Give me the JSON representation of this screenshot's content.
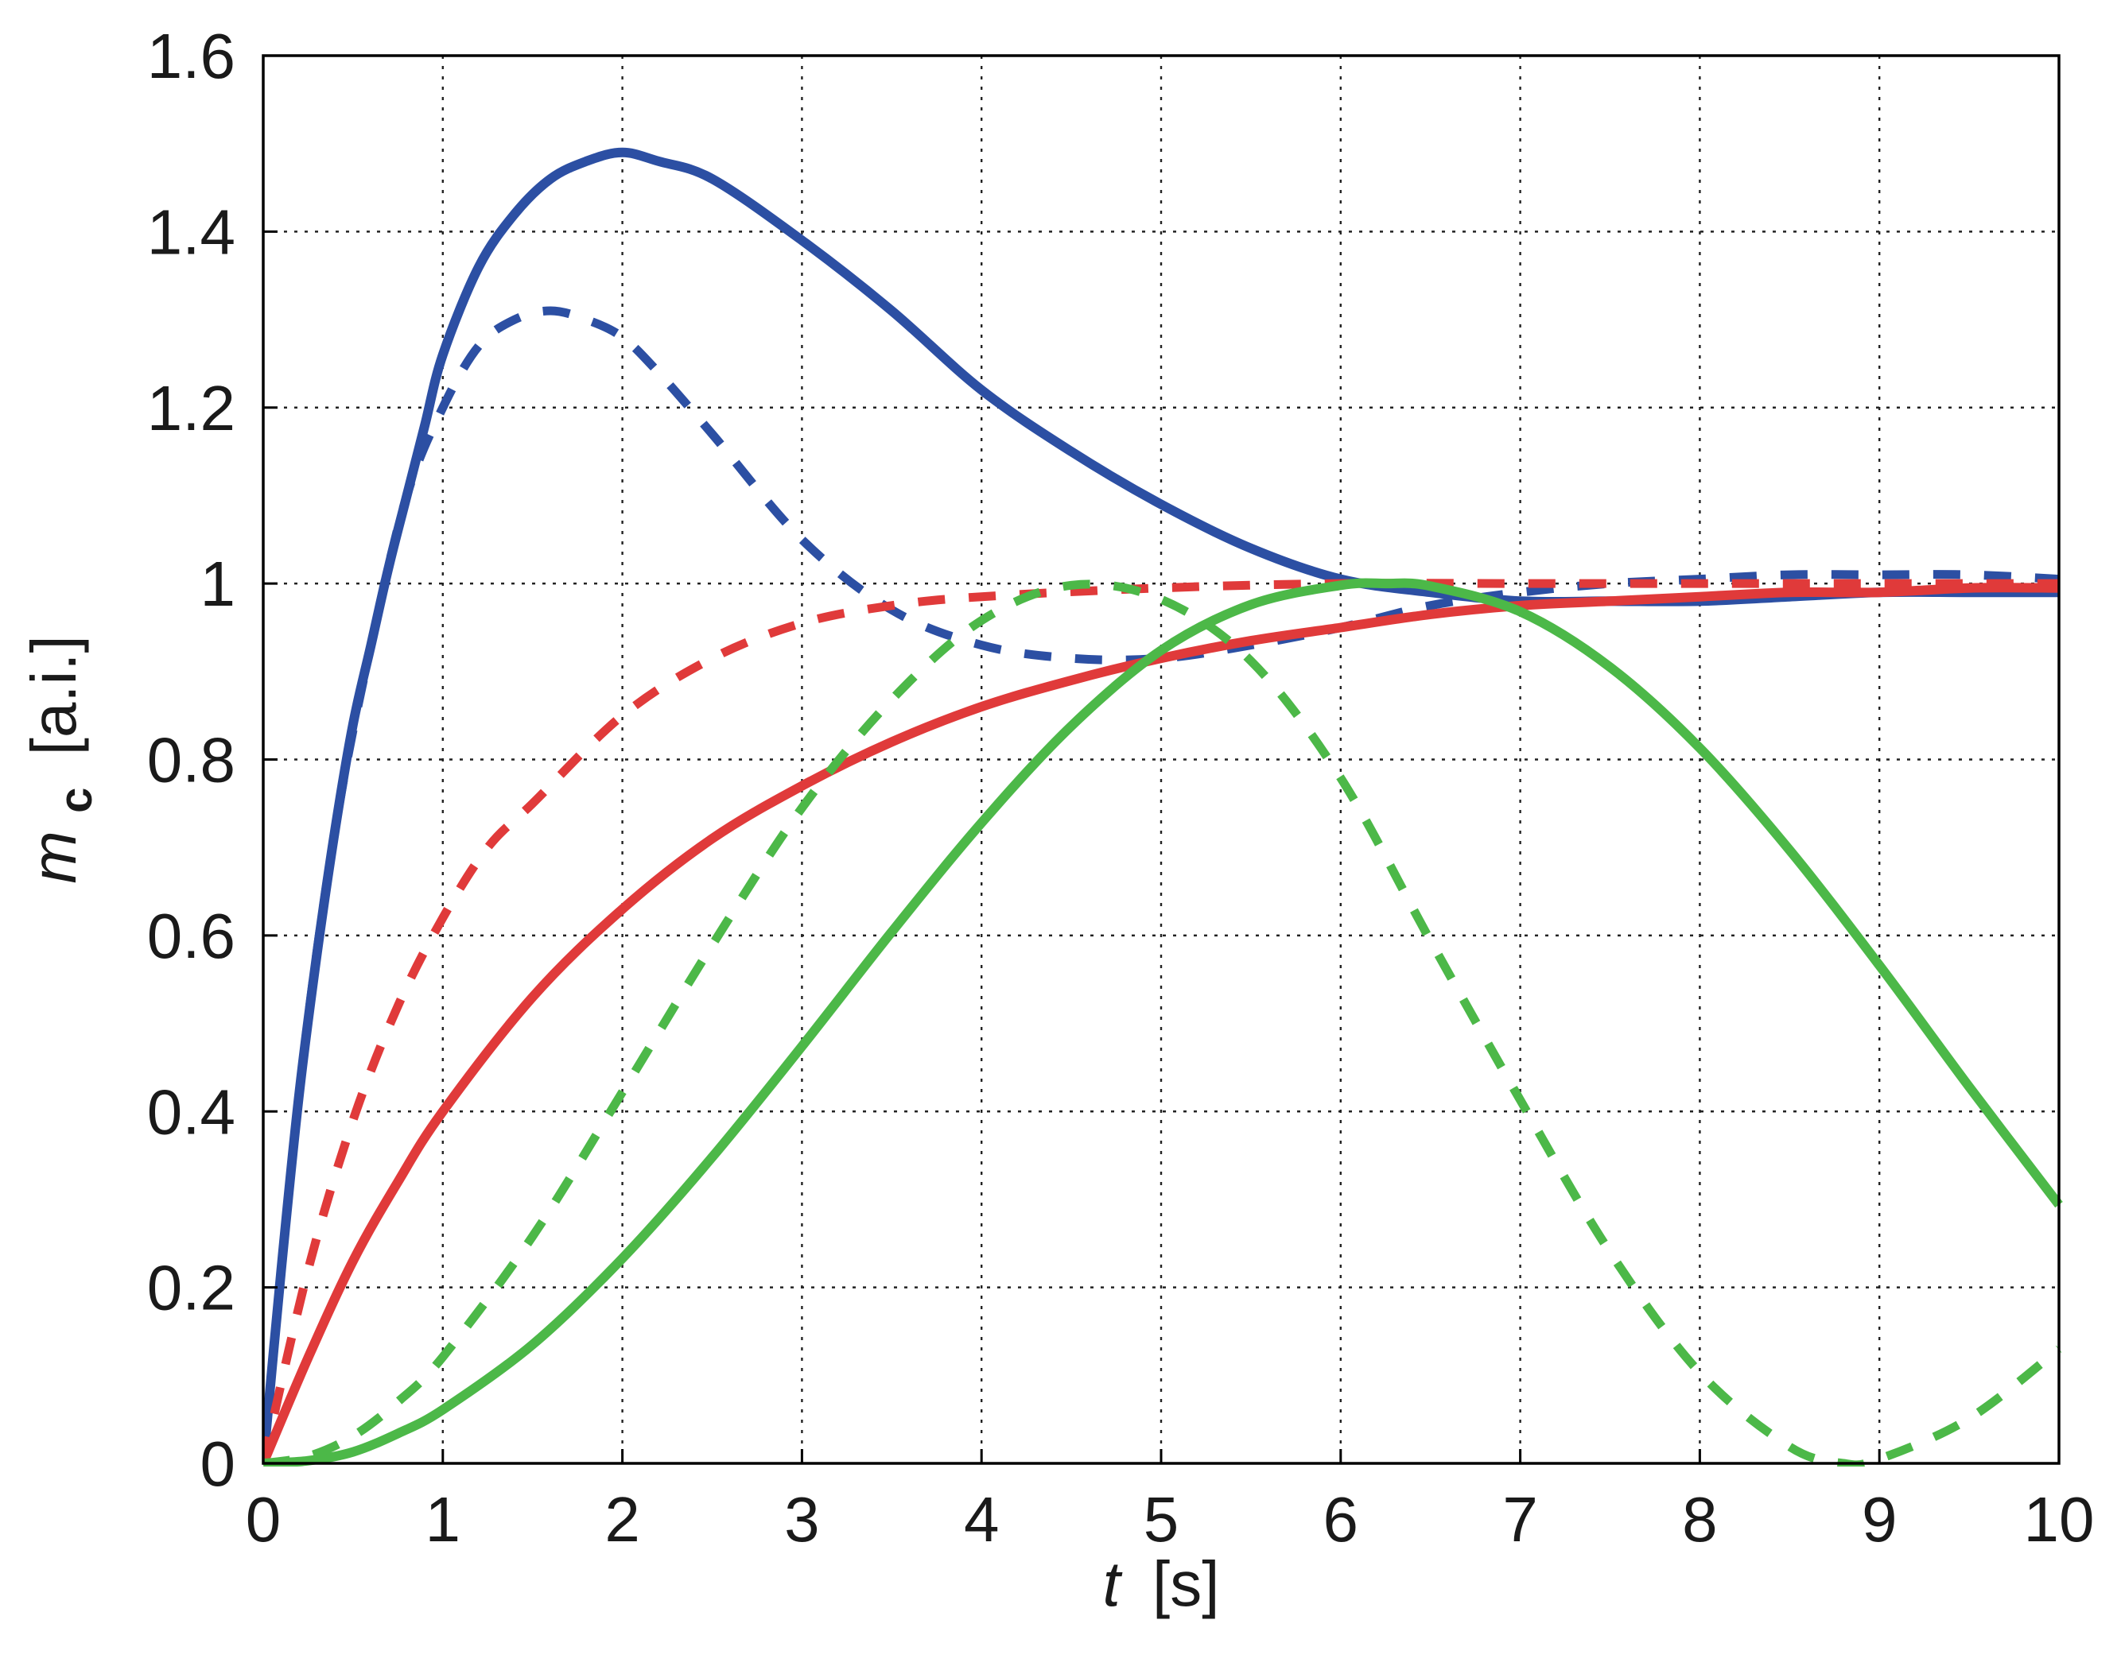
{
  "chart_data": {
    "type": "line",
    "xlabel": {
      "var": "t",
      "unit": "[s]"
    },
    "ylabel": {
      "var": "m",
      "sub": "c",
      "unit": "[a.i.]"
    },
    "xlim": [
      0,
      10
    ],
    "ylim": [
      0,
      1.6
    ],
    "x_ticks": [
      0,
      1,
      2,
      3,
      4,
      5,
      6,
      7,
      8,
      9,
      10
    ],
    "x_tick_labels": [
      "0",
      "1",
      "2",
      "3",
      "4",
      "5",
      "6",
      "7",
      "8",
      "9",
      "10"
    ],
    "y_ticks": [
      0,
      0.2,
      0.4,
      0.6,
      0.8,
      1.0,
      1.2,
      1.4,
      1.6
    ],
    "y_tick_labels": [
      "0",
      "0.2",
      "0.4",
      "0.6",
      "0.8",
      "1",
      "1.2",
      "1.4",
      "1.6"
    ],
    "grid": true,
    "legend": "none",
    "series": [
      {
        "color": "#2c4fa3",
        "style": "solid",
        "x": [
          0,
          0.1,
          0.2,
          0.3,
          0.4,
          0.5,
          0.6,
          0.7,
          0.8,
          0.9,
          1.0,
          1.2,
          1.4,
          1.6,
          1.8,
          2.0,
          2.2,
          2.5,
          3.0,
          3.5,
          4.0,
          4.5,
          5.0,
          5.5,
          6.0,
          6.5,
          7.0,
          7.5,
          8.0,
          8.5,
          9.0,
          9.5,
          10.0
        ],
        "y": [
          0,
          0.22,
          0.42,
          0.58,
          0.72,
          0.84,
          0.93,
          1.02,
          1.1,
          1.18,
          1.26,
          1.36,
          1.42,
          1.46,
          1.48,
          1.49,
          1.48,
          1.46,
          1.39,
          1.31,
          1.22,
          1.15,
          1.09,
          1.04,
          1.005,
          0.99,
          0.98,
          0.98,
          0.98,
          0.985,
          0.99,
          0.99,
          0.99
        ]
      },
      {
        "color": "#2c4fa3",
        "style": "dashed",
        "x": [
          0,
          0.2,
          0.4,
          0.6,
          0.8,
          1.0,
          1.2,
          1.4,
          1.6,
          1.8,
          2.0,
          2.2,
          2.5,
          3.0,
          3.5,
          4.0,
          4.5,
          5.0,
          5.5,
          6.0,
          6.5,
          7.0,
          7.5,
          8.0,
          8.5,
          9.0,
          9.5,
          10.0
        ],
        "y": [
          0,
          0.42,
          0.72,
          0.93,
          1.1,
          1.2,
          1.27,
          1.3,
          1.31,
          1.3,
          1.28,
          1.24,
          1.17,
          1.05,
          0.97,
          0.93,
          0.915,
          0.915,
          0.93,
          0.95,
          0.975,
          0.99,
          1.0,
          1.005,
          1.01,
          1.01,
          1.01,
          1.005
        ]
      },
      {
        "color": "#e03a3a",
        "style": "solid",
        "x": [
          0,
          0.25,
          0.5,
          0.75,
          1.0,
          1.5,
          2.0,
          2.5,
          3.0,
          3.5,
          4.0,
          4.5,
          5.0,
          5.5,
          6.0,
          6.5,
          7.0,
          7.5,
          8.0,
          8.5,
          9.0,
          9.5,
          10.0
        ],
        "y": [
          0,
          0.12,
          0.23,
          0.32,
          0.4,
          0.53,
          0.63,
          0.71,
          0.77,
          0.82,
          0.86,
          0.89,
          0.915,
          0.935,
          0.95,
          0.965,
          0.975,
          0.98,
          0.985,
          0.99,
          0.99,
          0.995,
          0.995
        ]
      },
      {
        "color": "#e03a3a",
        "style": "dashed",
        "x": [
          0,
          0.25,
          0.5,
          0.75,
          1.0,
          1.25,
          1.5,
          2.0,
          2.5,
          3.0,
          3.5,
          4.0,
          5.0,
          6.0,
          7.0,
          8.0,
          9.0,
          10.0
        ],
        "y": [
          0,
          0.22,
          0.39,
          0.52,
          0.62,
          0.7,
          0.75,
          0.85,
          0.915,
          0.955,
          0.975,
          0.985,
          0.995,
          1.0,
          1.0,
          1.0,
          1.0,
          1.0
        ]
      },
      {
        "color": "#4cb848",
        "style": "solid",
        "x": [
          0,
          0.25,
          0.5,
          0.75,
          1.0,
          1.5,
          2.0,
          2.5,
          3.0,
          3.5,
          4.0,
          4.5,
          5.0,
          5.5,
          6.0,
          6.25,
          6.5,
          7.0,
          7.5,
          8.0,
          8.5,
          9.0,
          9.5,
          10.0
        ],
        "y": [
          0,
          0.003,
          0.013,
          0.034,
          0.061,
          0.135,
          0.233,
          0.348,
          0.474,
          0.604,
          0.728,
          0.838,
          0.924,
          0.976,
          0.998,
          1.0,
          0.997,
          0.968,
          0.905,
          0.813,
          0.697,
          0.566,
          0.428,
          0.294
        ]
      },
      {
        "color": "#4cb848",
        "style": "dashed",
        "x": [
          0,
          0.25,
          0.5,
          0.75,
          1.0,
          1.5,
          2.0,
          2.5,
          3.0,
          3.5,
          4.0,
          4.5,
          5.0,
          5.5,
          6.0,
          6.5,
          7.0,
          7.5,
          8.0,
          8.5,
          8.8,
          9.0,
          9.5,
          10.0
        ],
        "y": [
          0,
          0.008,
          0.031,
          0.07,
          0.121,
          0.258,
          0.422,
          0.589,
          0.745,
          0.868,
          0.958,
          0.998,
          0.982,
          0.912,
          0.779,
          0.594,
          0.413,
          0.24,
          0.103,
          0.019,
          0.0,
          0.005,
          0.051,
          0.13
        ]
      }
    ]
  }
}
